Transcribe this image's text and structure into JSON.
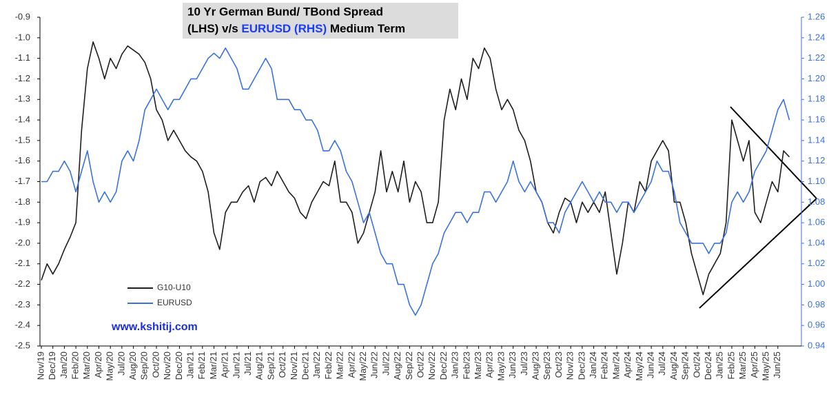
{
  "chart_data": {
    "type": "line",
    "title": {
      "line1": "10 Yr German Bund/ TBond Spread",
      "line2_start": "(LHS) v/s",
      "line2_highlight": "EURUSD  (RHS)",
      "line2_end": "Medium Term"
    },
    "annotation": "www.kshitij.com",
    "categories": [
      "Nov/19",
      null,
      "Dec/19",
      null,
      "Jan/20",
      null,
      "Feb/20",
      null,
      "Mar/20",
      null,
      "Apr/20",
      null,
      "May/20",
      null,
      "Jul/20",
      null,
      "Aug/20",
      null,
      "Sep/20",
      null,
      "Oct/20",
      null,
      "Nov/20",
      null,
      "Dec/20",
      null,
      "Jan/21",
      null,
      "Feb/21",
      null,
      "Mar/21",
      null,
      "Apr/21",
      null,
      "Jun/21",
      null,
      "Jul/21",
      null,
      "Aug/21",
      null,
      "Sep/21",
      null,
      "Oct/21",
      null,
      "Nov/21",
      null,
      "Dec/21",
      null,
      "Jan/22",
      null,
      "Feb/22",
      null,
      "Mar/22",
      null,
      "Apr/22",
      null,
      "May/22",
      null,
      "Jun/22",
      null,
      "Jul/22",
      null,
      "Aug/22",
      null,
      "Sep/22",
      null,
      "Oct/22",
      null,
      "Nov/22",
      null,
      "Dec/22",
      null,
      "Jan/23",
      null,
      "Feb/23",
      null,
      "Mar/23",
      null,
      "Apr/23",
      null,
      "May/23",
      null,
      "Jun/23",
      null,
      "Jul/23",
      null,
      "Aug/23",
      null,
      "Sep/23",
      null,
      "Oct/23",
      null,
      "Nov/23",
      null,
      "Dec/23",
      null,
      "Jan/24",
      null,
      "Feb/24",
      null,
      "Mar/24",
      null,
      "Apr/24",
      null,
      "May/24",
      null,
      "Jun/24",
      null,
      "Jul/24",
      null,
      "Aug/24",
      null,
      "Sep/24",
      null,
      "Oct/24",
      null,
      "Dec/24",
      null,
      "Jan/25",
      null,
      "Feb/25",
      null,
      "Mar/25",
      null,
      "Apr/25",
      null,
      "May/25",
      null,
      "Jun/25",
      null,
      null,
      null
    ],
    "series": [
      {
        "name": "G10-U10",
        "color": "#1e1e1e",
        "axis": "y",
        "values": [
          -2.18,
          -2.1,
          -2.15,
          -2.1,
          -2.03,
          -1.97,
          -1.9,
          -1.45,
          -1.15,
          -1.02,
          -1.1,
          -1.2,
          -1.1,
          -1.15,
          -1.08,
          -1.04,
          -1.06,
          -1.08,
          -1.12,
          -1.2,
          -1.35,
          -1.4,
          -1.5,
          -1.45,
          -1.5,
          -1.55,
          -1.58,
          -1.6,
          -1.65,
          -1.75,
          -1.95,
          -2.03,
          -1.85,
          -1.8,
          -1.8,
          -1.75,
          -1.72,
          -1.8,
          -1.7,
          -1.68,
          -1.72,
          -1.65,
          -1.7,
          -1.75,
          -1.78,
          -1.85,
          -1.88,
          -1.8,
          -1.75,
          -1.7,
          -1.72,
          -1.6,
          -1.8,
          -1.8,
          -1.85,
          -2.0,
          -1.95,
          -1.85,
          -1.75,
          -1.55,
          -1.75,
          -1.65,
          -1.75,
          -1.6,
          -1.8,
          -1.7,
          -1.75,
          -1.9,
          -1.9,
          -1.8,
          -1.4,
          -1.25,
          -1.35,
          -1.2,
          -1.3,
          -1.1,
          -1.15,
          -1.05,
          -1.1,
          -1.25,
          -1.35,
          -1.3,
          -1.35,
          -1.45,
          -1.5,
          -1.6,
          -1.75,
          -1.8,
          -1.9,
          -1.95,
          -1.85,
          -1.78,
          -1.8,
          -1.9,
          -1.8,
          -1.85,
          -1.8,
          -1.85,
          -1.75,
          -1.95,
          -2.15,
          -2.0,
          -1.8,
          -1.85,
          -1.7,
          -1.75,
          -1.6,
          -1.55,
          -1.5,
          -1.55,
          -1.8,
          -1.8,
          -1.9,
          -2.05,
          -2.15,
          -2.25,
          -2.15,
          -2.1,
          -2.05,
          -1.9,
          -1.4,
          -1.5,
          -1.6,
          -1.5,
          -1.85,
          -1.9,
          -1.8,
          -1.7,
          -1.75,
          -1.55,
          -1.58,
          null
        ]
      },
      {
        "name": "EURUSD",
        "color": "#3a72dc",
        "axis": "y2",
        "values": [
          1.1,
          1.1,
          1.11,
          1.11,
          1.12,
          1.11,
          1.09,
          1.11,
          1.13,
          1.1,
          1.08,
          1.09,
          1.08,
          1.09,
          1.12,
          1.13,
          1.12,
          1.14,
          1.17,
          1.18,
          1.19,
          1.18,
          1.17,
          1.18,
          1.18,
          1.19,
          1.2,
          1.2,
          1.21,
          1.22,
          1.225,
          1.22,
          1.23,
          1.22,
          1.21,
          1.19,
          1.19,
          1.2,
          1.21,
          1.22,
          1.21,
          1.18,
          1.18,
          1.18,
          1.17,
          1.17,
          1.16,
          1.16,
          1.15,
          1.13,
          1.13,
          1.14,
          1.13,
          1.11,
          1.1,
          1.08,
          1.06,
          1.07,
          1.05,
          1.03,
          1.02,
          1.02,
          1.0,
          1.0,
          0.98,
          0.97,
          0.98,
          1.0,
          1.02,
          1.03,
          1.05,
          1.06,
          1.07,
          1.07,
          1.06,
          1.07,
          1.07,
          1.09,
          1.09,
          1.08,
          1.09,
          1.1,
          1.12,
          1.1,
          1.09,
          1.1,
          1.09,
          1.08,
          1.06,
          1.06,
          1.05,
          1.07,
          1.08,
          1.09,
          1.1,
          1.09,
          1.08,
          1.09,
          1.08,
          1.08,
          1.07,
          1.08,
          1.08,
          1.07,
          1.08,
          1.09,
          1.1,
          1.12,
          1.11,
          1.11,
          1.09,
          1.06,
          1.05,
          1.04,
          1.04,
          1.04,
          1.03,
          1.04,
          1.04,
          1.05,
          1.08,
          1.09,
          1.08,
          1.09,
          1.11,
          1.12,
          1.13,
          1.15,
          1.17,
          1.18,
          1.16,
          null
        ]
      }
    ],
    "ylim": [
      -2.5,
      -0.9
    ],
    "yticks": [
      -0.9,
      {
        "value": -1,
        "label": "-1.0"
      },
      -1.1,
      -1.2,
      -1.3,
      -1.4,
      -1.5,
      -1.6,
      -1.7,
      -1.8,
      -1.9,
      {
        "value": -2,
        "label": "-2.0"
      },
      -2.1,
      -2.2,
      -2.3,
      -2.4,
      -2.5
    ],
    "y2lim": [
      0.94,
      1.26
    ],
    "y2ticks": [
      1.26,
      1.24,
      1.22,
      {
        "value": 1.2,
        "label": "1.20"
      },
      1.18,
      1.16,
      1.14,
      1.12,
      {
        "value": 1.1,
        "label": "1.10"
      },
      1.08,
      1.06,
      1.04,
      1.02,
      {
        "value": 1,
        "label": "1.00"
      },
      0.98,
      0.96,
      0.94
    ],
    "grid": false
  }
}
